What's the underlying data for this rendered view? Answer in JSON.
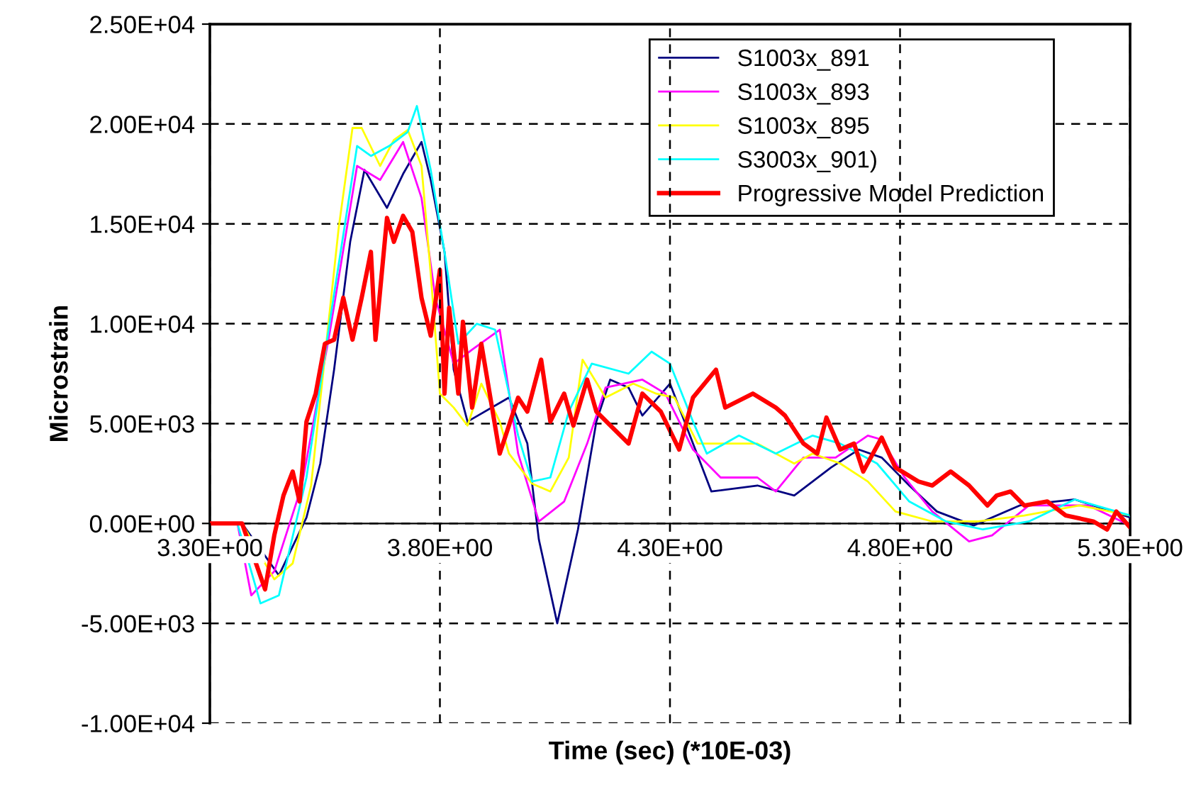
{
  "chart_data": {
    "type": "line",
    "xlabel": "Time (sec) (*10E-03)",
    "ylabel": "Microstrain",
    "xlim": [
      3.3,
      5.3
    ],
    "ylim": [
      -10000,
      25000
    ],
    "xticks": [
      {
        "value": 3.3,
        "label": "3.30E+00"
      },
      {
        "value": 3.8,
        "label": "3.80E+00"
      },
      {
        "value": 4.3,
        "label": "4.30E+00"
      },
      {
        "value": 4.8,
        "label": "4.80E+00"
      },
      {
        "value": 5.3,
        "label": "5.30E+00"
      }
    ],
    "yticks": [
      {
        "value": -10000,
        "label": "-1.00E+04"
      },
      {
        "value": -5000,
        "label": "-5.00E+03"
      },
      {
        "value": 0,
        "label": "0.00E+00"
      },
      {
        "value": 5000,
        "label": "5.00E+03"
      },
      {
        "value": 10000,
        "label": "1.00E+04"
      },
      {
        "value": 15000,
        "label": "1.50E+04"
      },
      {
        "value": 20000,
        "label": "2.00E+04"
      },
      {
        "value": 25000,
        "label": "2.50E+04"
      }
    ],
    "grid": true,
    "legend": "top right",
    "marker": "none",
    "line_style": "solid",
    "series": [
      {
        "name": "S1003x_891",
        "color": "#000080",
        "x": [
          3.3,
          3.37,
          3.45,
          3.51,
          3.54,
          3.57,
          3.605,
          3.636,
          3.685,
          3.72,
          3.76,
          3.78,
          3.81,
          3.83,
          3.86,
          3.95,
          3.99,
          4.015,
          4.055,
          4.1,
          4.14,
          4.17,
          4.21,
          4.24,
          4.3,
          4.35,
          4.39,
          4.49,
          4.57,
          4.65,
          4.71,
          4.76,
          4.82,
          4.88,
          4.96,
          5.06,
          5.18,
          5.3
        ],
        "values": [
          0,
          0,
          -2600,
          300,
          3000,
          7700,
          14100,
          17700,
          15800,
          17500,
          19100,
          17200,
          13600,
          7700,
          5100,
          6300,
          4000,
          -800,
          -5000,
          -300,
          5100,
          7200,
          6800,
          5400,
          7000,
          4000,
          1600,
          1900,
          1400,
          2800,
          3700,
          3300,
          1900,
          600,
          -100,
          900,
          1200,
          300
        ]
      },
      {
        "name": "S1003x_893",
        "color": "#ff00ff",
        "x": [
          3.3,
          3.36,
          3.39,
          3.44,
          3.5,
          3.56,
          3.62,
          3.67,
          3.72,
          3.76,
          3.79,
          3.83,
          3.87,
          3.93,
          3.97,
          4.015,
          4.07,
          4.12,
          4.16,
          4.24,
          4.29,
          4.35,
          4.41,
          4.49,
          4.53,
          4.59,
          4.66,
          4.73,
          4.76,
          4.81,
          4.87,
          4.95,
          5.0,
          5.08,
          5.21,
          5.3
        ],
        "values": [
          0,
          0,
          -3600,
          -2400,
          1900,
          9500,
          17900,
          17200,
          19100,
          16300,
          11300,
          8000,
          8700,
          9700,
          3500,
          100,
          1100,
          4000,
          6800,
          7200,
          6500,
          3700,
          2300,
          2300,
          1600,
          3300,
          3300,
          4400,
          4200,
          2300,
          600,
          -900,
          -600,
          900,
          900,
          -100
        ]
      },
      {
        "name": "S1003x_895",
        "color": "#ffff00",
        "x": [
          3.3,
          3.37,
          3.44,
          3.48,
          3.52,
          3.58,
          3.61,
          3.63,
          3.67,
          3.7,
          3.73,
          3.76,
          3.78,
          3.8,
          3.83,
          3.86,
          3.89,
          3.93,
          3.95,
          4.0,
          4.04,
          4.08,
          4.11,
          4.16,
          4.22,
          4.27,
          4.31,
          4.36,
          4.42,
          4.49,
          4.57,
          4.61,
          4.67,
          4.73,
          4.79,
          4.87,
          4.97,
          5.07,
          5.19,
          5.3
        ],
        "values": [
          0,
          0,
          -2800,
          -2000,
          1900,
          14800,
          19800,
          19800,
          17900,
          19200,
          19700,
          17900,
          12500,
          6500,
          5800,
          4900,
          7000,
          5100,
          3500,
          2000,
          1600,
          3300,
          8200,
          6300,
          7000,
          6500,
          6300,
          4000,
          4000,
          4000,
          3000,
          3500,
          3000,
          2100,
          600,
          100,
          100,
          400,
          900,
          400
        ]
      },
      {
        "name": "S3003x_901)",
        "color": "#00ffff",
        "x": [
          3.3,
          3.36,
          3.41,
          3.45,
          3.51,
          3.56,
          3.62,
          3.65,
          3.69,
          3.73,
          3.75,
          3.78,
          3.81,
          3.84,
          3.88,
          3.92,
          3.97,
          4.0,
          4.04,
          4.08,
          4.13,
          4.21,
          4.26,
          4.3,
          4.35,
          4.38,
          4.45,
          4.53,
          4.61,
          4.67,
          4.75,
          4.82,
          4.9,
          4.98,
          5.08,
          5.18,
          5.3
        ],
        "values": [
          0,
          0,
          -4000,
          -3600,
          2300,
          10000,
          18900,
          18400,
          18900,
          19600,
          20900,
          17700,
          13600,
          9000,
          10000,
          9700,
          4400,
          2100,
          2300,
          5600,
          8000,
          7500,
          8600,
          8000,
          5100,
          3500,
          4400,
          3500,
          4400,
          4000,
          3000,
          1100,
          100,
          -300,
          100,
          1200,
          400
        ]
      },
      {
        "name": "Progressive Model Prediction",
        "color": "#ff0000",
        "x": [
          3.3,
          3.37,
          3.42,
          3.44,
          3.46,
          3.48,
          3.495,
          3.51,
          3.53,
          3.55,
          3.57,
          3.59,
          3.61,
          3.63,
          3.65,
          3.66,
          3.685,
          3.7,
          3.72,
          3.74,
          3.76,
          3.78,
          3.8,
          3.81,
          3.82,
          3.84,
          3.85,
          3.87,
          3.89,
          3.93,
          3.97,
          3.99,
          4.02,
          4.04,
          4.07,
          4.09,
          4.12,
          4.14,
          4.21,
          4.24,
          4.28,
          4.32,
          4.35,
          4.4,
          4.42,
          4.48,
          4.53,
          4.55,
          4.59,
          4.62,
          4.64,
          4.67,
          4.7,
          4.72,
          4.76,
          4.79,
          4.84,
          4.87,
          4.91,
          4.95,
          4.99,
          5.01,
          5.04,
          5.07,
          5.12,
          5.16,
          5.22,
          5.25,
          5.27,
          5.3
        ],
        "values": [
          0,
          0,
          -3300,
          -600,
          1400,
          2600,
          1100,
          5100,
          6500,
          9000,
          9200,
          11300,
          9200,
          11300,
          13600,
          9200,
          15300,
          14100,
          15400,
          14600,
          11300,
          9400,
          12700,
          6500,
          10800,
          6500,
          10100,
          5800,
          9000,
          3500,
          6300,
          5600,
          8200,
          5100,
          6500,
          4900,
          7200,
          5600,
          4000,
          6500,
          5600,
          3700,
          6300,
          7700,
          5800,
          6500,
          5800,
          5400,
          4000,
          3500,
          5300,
          3700,
          4000,
          2600,
          4300,
          2800,
          2100,
          1900,
          2600,
          1900,
          900,
          1400,
          1600,
          900,
          1100,
          400,
          100,
          -300,
          600,
          -200
        ]
      }
    ]
  }
}
